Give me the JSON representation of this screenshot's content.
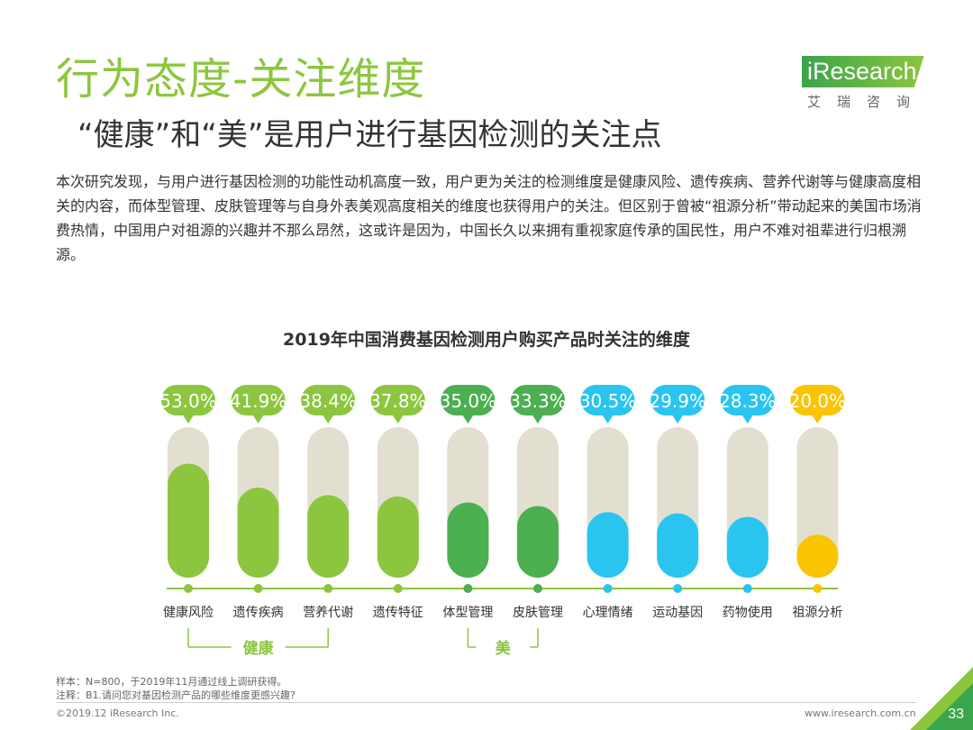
{
  "header": {
    "title": "行为态度-关注维度",
    "subtitle": "“健康”和“美”是用户进行基因检测的关注点"
  },
  "logo": {
    "word": "iResearch",
    "cn": "艾瑞咨询"
  },
  "intro": "本次研究发现，与用户进行基因检测的功能性动机高度一致，用户更为关注的检测维度是健康风险、遗传疾病、营养代谢等与健康高度相关的内容，而体型管理、皮肤管理等与自身外表美观高度相关的维度也获得用户的关注。但区别于曾被“祖源分析”带动起来的美国市场消费热情，中国用户对祖源的兴趣并不那么昂然，这或许是因为，中国长久以来拥有重视家庭传承的国民性，用户不难对祖辈进行归根溯源。",
  "chart_data": {
    "type": "bar",
    "title": "2019年中国消费基因检测用户购买产品时关注的维度",
    "categories": [
      "健康风险",
      "遗传疾病",
      "营养代谢",
      "遗传特征",
      "体型管理",
      "皮肤管理",
      "心理情绪",
      "运动基因",
      "药物使用",
      "祖源分析"
    ],
    "values": [
      53.0,
      41.9,
      38.4,
      37.8,
      35.0,
      33.3,
      30.5,
      29.9,
      28.3,
      20.0
    ],
    "value_labels": [
      "53.0%",
      "41.9%",
      "38.4%",
      "37.8%",
      "35.0%",
      "33.3%",
      "30.5%",
      "29.9%",
      "28.3%",
      "20.0%"
    ],
    "colors": [
      "#8cc63f",
      "#8cc63f",
      "#8cc63f",
      "#8cc63f",
      "#4caf50",
      "#4caf50",
      "#29c5f0",
      "#29c5f0",
      "#29c5f0",
      "#fbc400"
    ],
    "track_color": "#e3dfd0",
    "groups": [
      {
        "label": "健康",
        "from": 0,
        "to": 2
      },
      {
        "label": "美",
        "from": 4,
        "to": 5
      }
    ]
  },
  "notes": {
    "sample": "样本：N=800，于2019年11月通过线上调研获得。",
    "note": "注释：B1.请问您对基因检测产品的哪些维度更感兴趣?"
  },
  "footer": {
    "copyright": "©2019.12 iResearch Inc.",
    "site": "www.iresearch.com.cn",
    "page": "33"
  },
  "colors": {
    "accent_green": "#8cc63f",
    "dark_green": "#4caf50",
    "blue": "#29c5f0",
    "yellow": "#fbc400"
  }
}
